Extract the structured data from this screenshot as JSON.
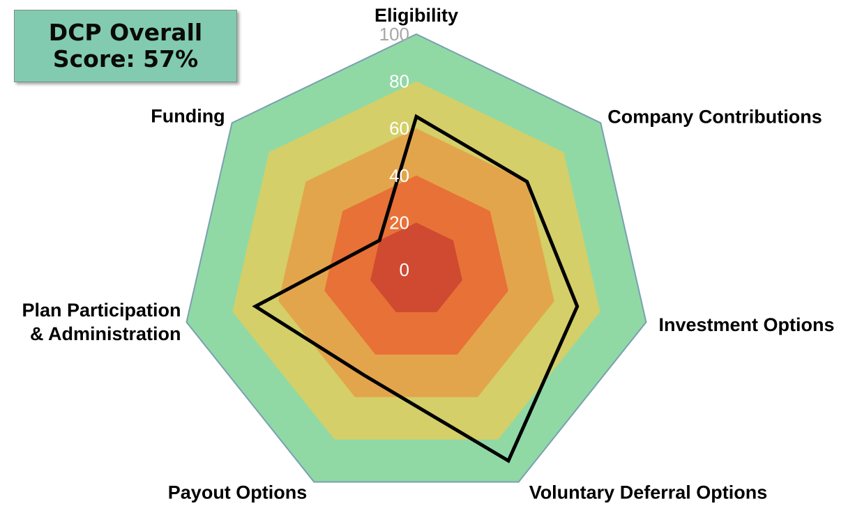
{
  "score_box": {
    "line1": "DCP Overall",
    "line2": "Score: 57%",
    "background": "#82cbb0"
  },
  "chart_data": {
    "type": "radar",
    "axes": [
      "Eligibility",
      "Company Contributions",
      "Investment Options",
      "Voluntary Deferral Options",
      "Payout Options",
      "Plan Participation\n& Administration",
      "Funding"
    ],
    "series": [
      {
        "values": [
          65,
          60,
          70,
          90,
          50,
          70,
          20
        ],
        "color": "#000000"
      }
    ],
    "rlim": [
      0,
      100
    ],
    "ticks": [
      0,
      20,
      40,
      60,
      80,
      100
    ],
    "bands": [
      {
        "from": 0,
        "to": 20,
        "color": "#cf4a31"
      },
      {
        "from": 20,
        "to": 40,
        "color": "#e87137"
      },
      {
        "from": 40,
        "to": 60,
        "color": "#e3a54b"
      },
      {
        "from": 60,
        "to": 80,
        "color": "#d4cf68"
      },
      {
        "from": 80,
        "to": 100,
        "color": "#90d9a5"
      }
    ],
    "outline_color": "#7a9fb1"
  }
}
